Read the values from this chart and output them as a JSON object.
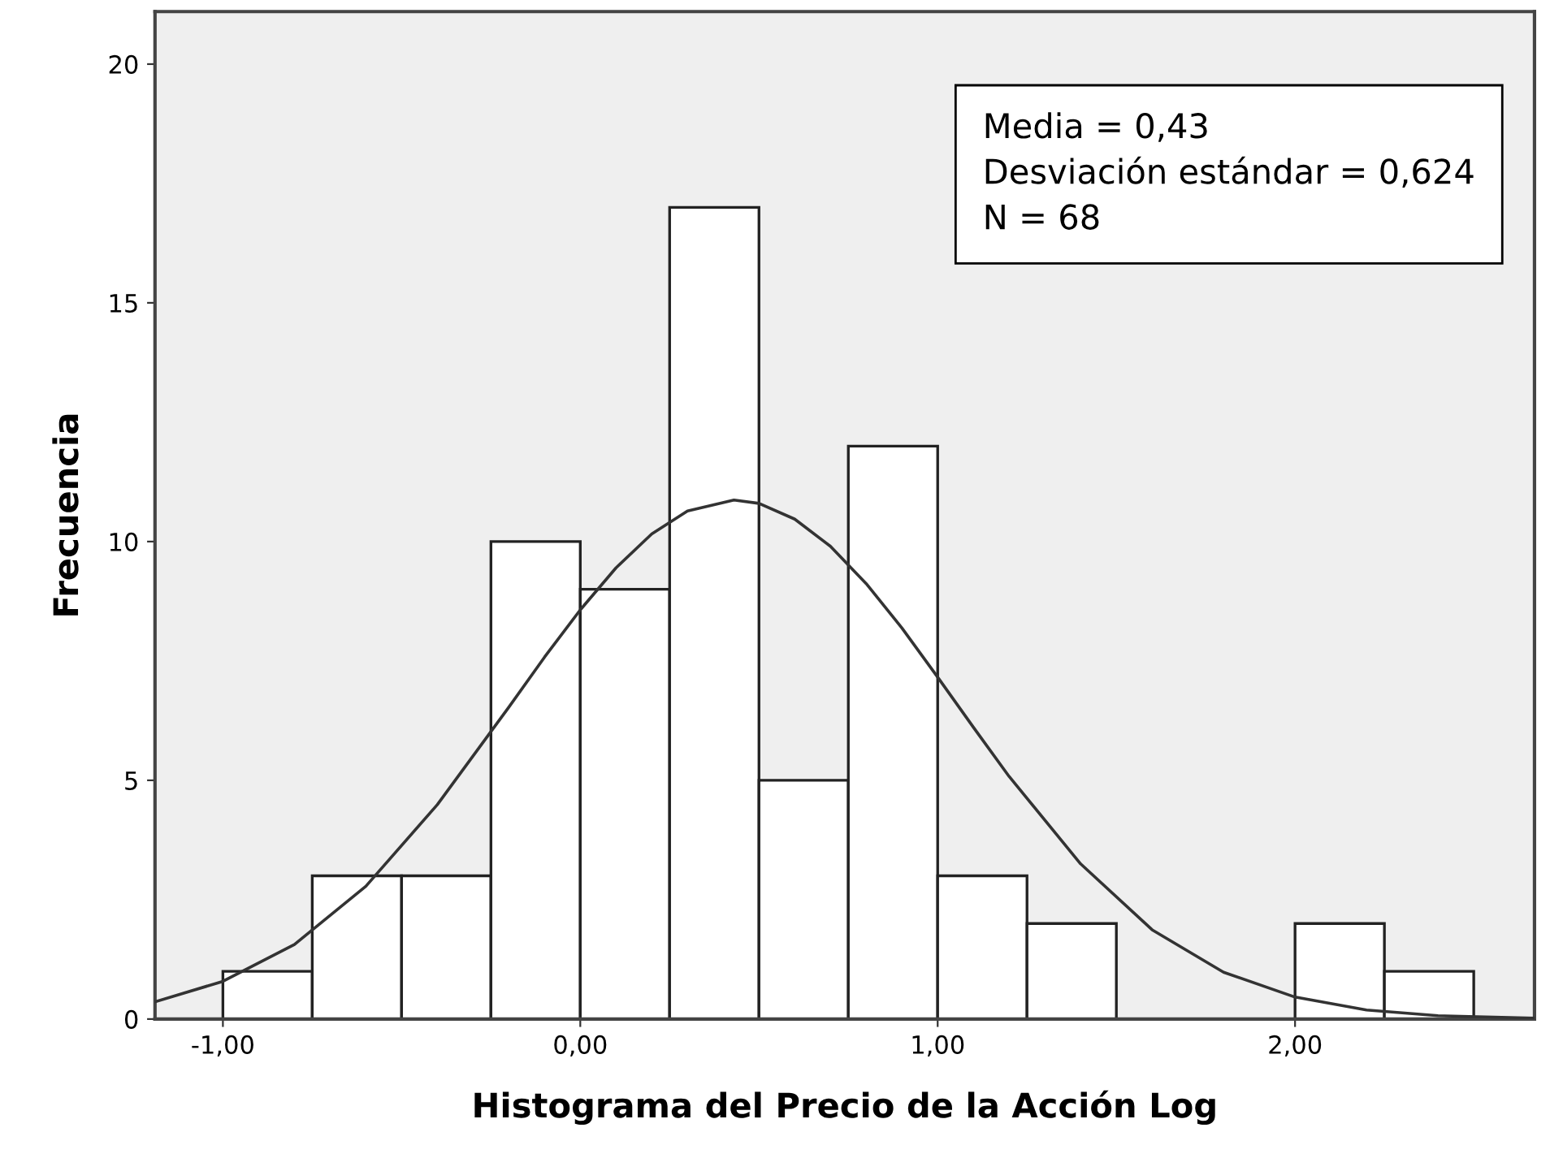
{
  "chart_data": {
    "type": "histogram",
    "xlabel": "Histograma del Precio de la Acción Log",
    "ylabel": "Frecuencia",
    "bins": [
      -1.0,
      -0.75,
      -0.5,
      -0.25,
      0.0,
      0.25,
      0.5,
      0.75,
      1.0,
      1.25,
      1.5,
      1.75,
      2.0,
      2.25,
      2.5
    ],
    "values": [
      1,
      3,
      3,
      10,
      9,
      17,
      5,
      12,
      3,
      2,
      0,
      0,
      2,
      1
    ],
    "color": "#ffffff",
    "series": [
      {
        "type": "line",
        "color": "#333333",
        "x": [
          -1.19,
          -1.0,
          -0.8,
          -0.6,
          -0.4,
          -0.2,
          -0.1,
          0.0,
          0.1,
          0.2,
          0.3,
          0.43,
          0.5,
          0.6,
          0.7,
          0.8,
          0.9,
          1.0,
          1.1,
          1.2,
          1.4,
          1.6,
          1.8,
          2.0,
          2.2,
          2.4,
          2.67
        ],
        "values": [
          0.36,
          0.79,
          1.56,
          2.78,
          4.49,
          6.53,
          7.58,
          8.57,
          9.45,
          10.16,
          10.64,
          10.87,
          10.8,
          10.47,
          9.9,
          9.12,
          8.19,
          7.16,
          6.11,
          5.08,
          3.25,
          1.87,
          0.98,
          0.46,
          0.19,
          0.07,
          0.02
        ]
      }
    ],
    "annotations": [
      "Media = 0,43\nDesviación estándar = 0,624\nN = 68"
    ],
    "xlim": [
      -1.19,
      2.67
    ],
    "ylim": [
      0,
      21.1
    ],
    "xticks": [
      {
        "value": -1,
        "label": "-1,00"
      },
      {
        "value": 0,
        "label": "0,00"
      },
      {
        "value": 1,
        "label": "1,00"
      },
      {
        "value": 2,
        "label": "2,00"
      }
    ],
    "yticks": [
      0,
      5,
      10,
      15,
      20
    ],
    "grid": false
  }
}
